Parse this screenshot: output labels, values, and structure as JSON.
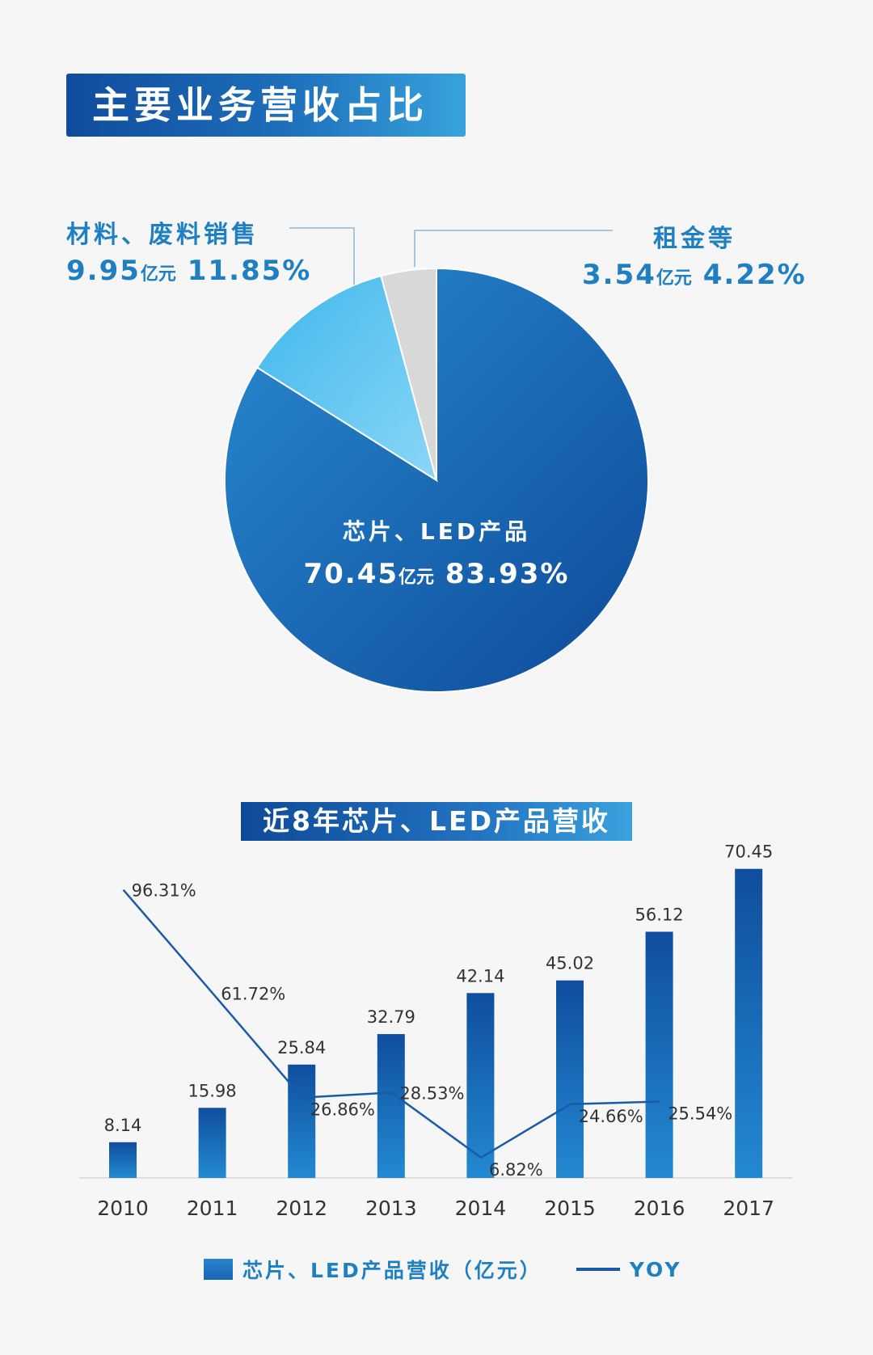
{
  "pie_section": {
    "title": "主要业务营收占比",
    "callouts": [
      {
        "name": "材料、废料销售",
        "amount": "9.95",
        "unit": "亿元",
        "pct": "11.85%"
      },
      {
        "name": "租金等",
        "amount": "3.54",
        "unit": "亿元",
        "pct": "4.22%"
      },
      {
        "name": "芯片、LED产品",
        "amount": "70.45",
        "unit": "亿元",
        "pct": "83.93%"
      }
    ]
  },
  "bar_section": {
    "title": "近8年芯片、LED产品营收",
    "legend": {
      "bar_label": "芯片、LED产品营收（亿元）",
      "line_label": "YOY"
    }
  },
  "colors": {
    "pie_main": "#1a6ab8",
    "pie_light": "#5cc3f0",
    "pie_grey": "#d8d8d8",
    "bar": "#1e78c4",
    "line": "#1a5aa8",
    "label_blue": "#1f7fc3"
  },
  "chart_data": [
    {
      "type": "pie",
      "title": "主要业务营收占比",
      "slices": [
        {
          "label": "芯片、LED产品",
          "value": 70.45,
          "pct": 83.93
        },
        {
          "label": "材料、废料销售",
          "value": 9.95,
          "pct": 11.85
        },
        {
          "label": "租金等",
          "value": 3.54,
          "pct": 4.22
        }
      ]
    },
    {
      "type": "bar",
      "title": "近8年芯片、LED产品营收",
      "categories": [
        "2010",
        "2011",
        "2012",
        "2013",
        "2014",
        "2015",
        "2016",
        "2017"
      ],
      "series": [
        {
          "name": "芯片、LED产品营收（亿元）",
          "type": "bar",
          "values": [
            8.14,
            15.98,
            25.84,
            32.79,
            42.14,
            45.02,
            56.12,
            70.45
          ],
          "labels": [
            "8.14",
            "15.98",
            "25.84",
            "32.79",
            "42.14",
            "45.02",
            "56.12",
            "70.45"
          ]
        },
        {
          "name": "YOY",
          "type": "line",
          "values": [
            null,
            96.31,
            61.72,
            26.86,
            28.53,
            6.82,
            24.66,
            25.54
          ],
          "labels": [
            "",
            "96.31%",
            "61.72%",
            "26.86%",
            "28.53%",
            "6.82%",
            "24.66%",
            "25.54%"
          ]
        }
      ],
      "ylim": [
        0,
        75
      ],
      "y2lim": [
        0,
        110
      ],
      "legend": "bottom",
      "grid": false
    }
  ]
}
